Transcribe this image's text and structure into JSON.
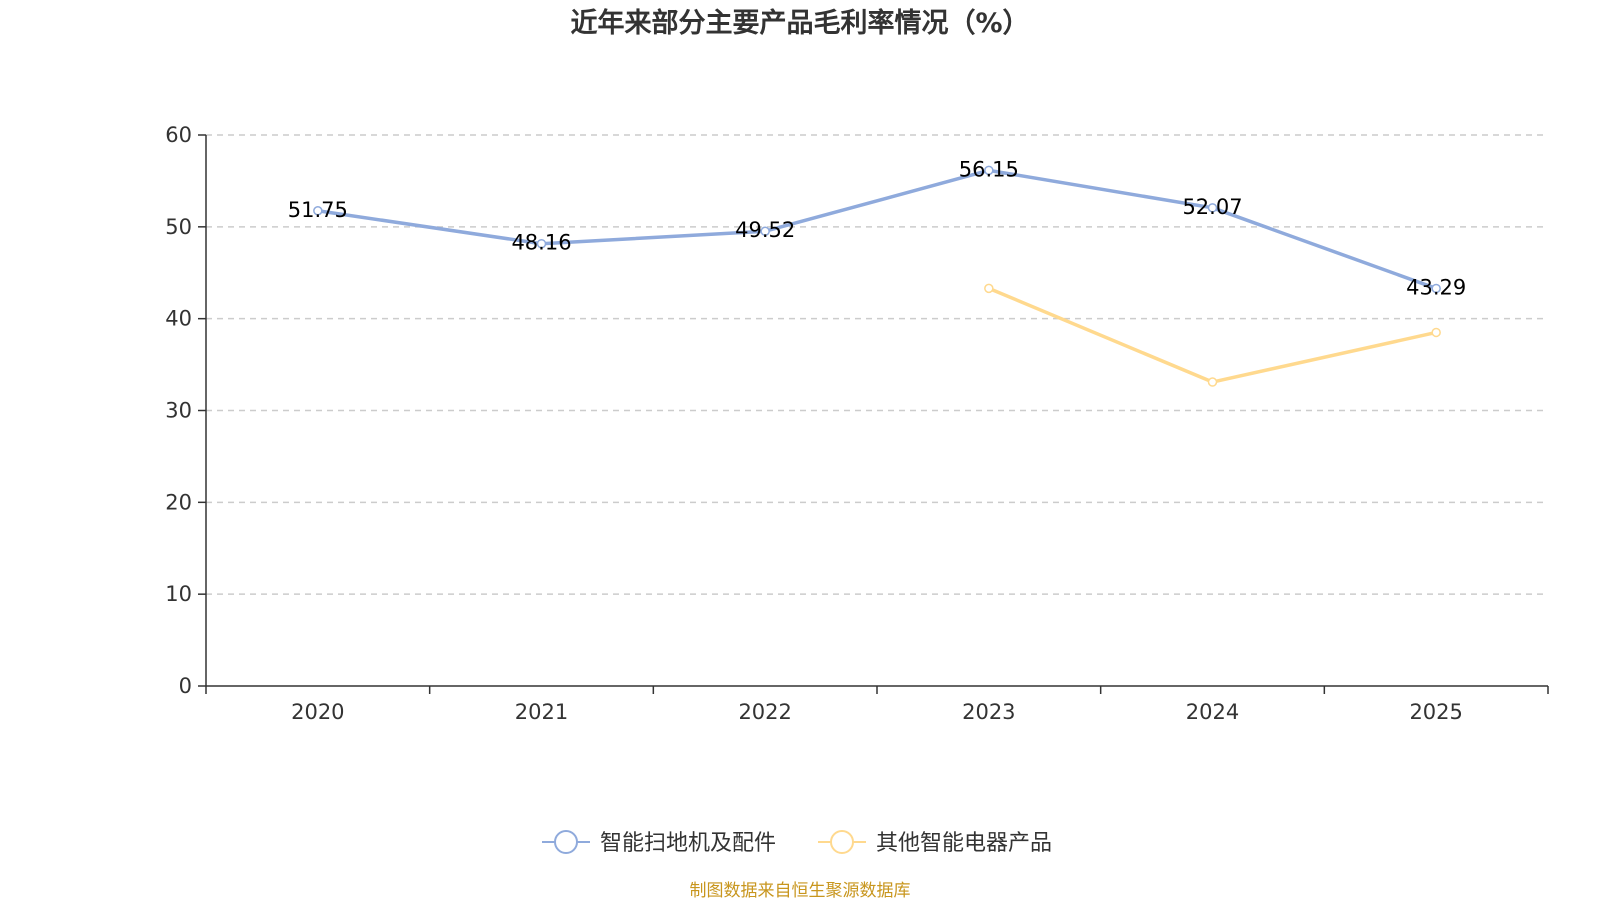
{
  "chart_data": {
    "type": "line",
    "title": "近年来部分主要产品毛利率情况（%）",
    "categories": [
      "2020",
      "2021",
      "2022",
      "2023",
      "2024",
      "2025"
    ],
    "ylim": [
      0,
      60
    ],
    "yticks": [
      0,
      10,
      20,
      30,
      40,
      50,
      60
    ],
    "grid": true,
    "legend_position": "bottom",
    "series": [
      {
        "name": "智能扫地机及配件",
        "color": "#8FAADC",
        "values": [
          51.75,
          48.16,
          49.52,
          56.15,
          52.07,
          43.29
        ],
        "labels": [
          "51.75",
          "48.16",
          "49.52",
          "56.15",
          "52.07",
          "43.29"
        ]
      },
      {
        "name": "其他智能电器产品",
        "color": "#FFD98E",
        "values": [
          null,
          null,
          null,
          43.3,
          33.1,
          38.5
        ],
        "labels": []
      }
    ]
  },
  "source_text": "制图数据来自恒生聚源数据库",
  "source_color": "#C8961E"
}
